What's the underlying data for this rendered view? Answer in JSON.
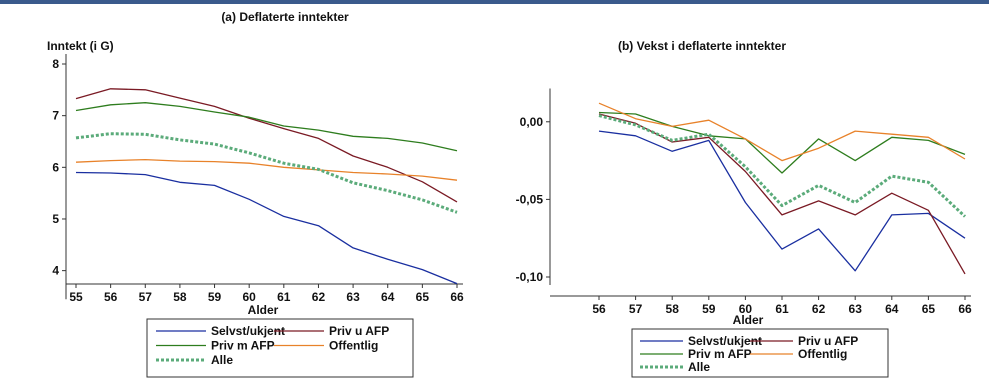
{
  "chart_data": [
    {
      "type": "line",
      "title": "(a) Deflaterte inntekter",
      "ylabel": "Inntekt (i G)",
      "xlabel": "Alder",
      "x": [
        55,
        56,
        57,
        58,
        59,
        60,
        61,
        62,
        63,
        64,
        65,
        66
      ],
      "ylim": [
        3.6,
        8.0
      ],
      "yticks": [
        4,
        5,
        6,
        7,
        8
      ],
      "ytick_labels": [
        "4",
        "5",
        "6",
        "7",
        "8"
      ],
      "grid": false,
      "legend_position": "bottom",
      "series": [
        {
          "name": "Selvst/ukjent",
          "color": "#1a2fa0",
          "dash": false,
          "values": [
            5.9,
            5.89,
            5.86,
            5.71,
            5.65,
            5.38,
            5.05,
            4.87,
            4.44,
            4.22,
            4.02,
            3.75
          ]
        },
        {
          "name": "Priv u AFP",
          "color": "#7a1a24",
          "dash": false,
          "values": [
            7.33,
            7.52,
            7.5,
            7.34,
            7.18,
            6.95,
            6.75,
            6.56,
            6.22,
            6.0,
            5.72,
            5.33
          ]
        },
        {
          "name": "Priv m AFP",
          "color": "#2e7d1e",
          "dash": false,
          "values": [
            7.1,
            7.21,
            7.25,
            7.18,
            7.07,
            6.97,
            6.8,
            6.72,
            6.6,
            6.56,
            6.47,
            6.32
          ]
        },
        {
          "name": "Offentlig",
          "color": "#e8822a",
          "dash": false,
          "values": [
            6.1,
            6.13,
            6.15,
            6.12,
            6.11,
            6.08,
            6.0,
            5.95,
            5.9,
            5.87,
            5.83,
            5.75
          ]
        },
        {
          "name": "Alle",
          "color": "#5bab7a",
          "dash": true,
          "values": [
            6.57,
            6.65,
            6.64,
            6.53,
            6.45,
            6.28,
            6.08,
            5.96,
            5.7,
            5.55,
            5.37,
            5.13
          ]
        }
      ]
    },
    {
      "type": "line",
      "title": "(b) Vekst i deflaterte inntekter",
      "ylabel": "",
      "xlabel": "Alder",
      "x": [
        56,
        57,
        58,
        59,
        60,
        61,
        62,
        63,
        64,
        65,
        66
      ],
      "ylim": [
        -0.1,
        0.015
      ],
      "yticks": [
        0.0,
        -0.05,
        -0.1
      ],
      "ytick_labels": [
        "0,00",
        "-0,05",
        "-0,10"
      ],
      "grid": false,
      "legend_position": "bottom",
      "series": [
        {
          "name": "Selvst/ukjent",
          "color": "#1a2fa0",
          "dash": false,
          "values": [
            -0.006,
            -0.009,
            -0.019,
            -0.012,
            -0.052,
            -0.082,
            -0.069,
            -0.096,
            -0.06,
            -0.059,
            -0.075
          ]
        },
        {
          "name": "Priv u AFP",
          "color": "#7a1a24",
          "dash": false,
          "values": [
            0.005,
            -0.001,
            -0.013,
            -0.01,
            -0.032,
            -0.06,
            -0.051,
            -0.06,
            -0.046,
            -0.057,
            -0.098
          ]
        },
        {
          "name": "Priv m AFP",
          "color": "#2e7d1e",
          "dash": false,
          "values": [
            0.006,
            0.005,
            -0.003,
            -0.009,
            -0.011,
            -0.033,
            -0.011,
            -0.025,
            -0.01,
            -0.012,
            -0.021
          ]
        },
        {
          "name": "Offentlig",
          "color": "#e8822a",
          "dash": false,
          "values": [
            0.012,
            0.002,
            -0.003,
            0.001,
            -0.011,
            -0.025,
            -0.017,
            -0.006,
            -0.008,
            -0.01,
            -0.024
          ]
        },
        {
          "name": "Alle",
          "color": "#5bab7a",
          "dash": true,
          "values": [
            0.004,
            -0.002,
            -0.012,
            -0.008,
            -0.029,
            -0.054,
            -0.041,
            -0.052,
            -0.035,
            -0.039,
            -0.061
          ]
        }
      ]
    }
  ]
}
